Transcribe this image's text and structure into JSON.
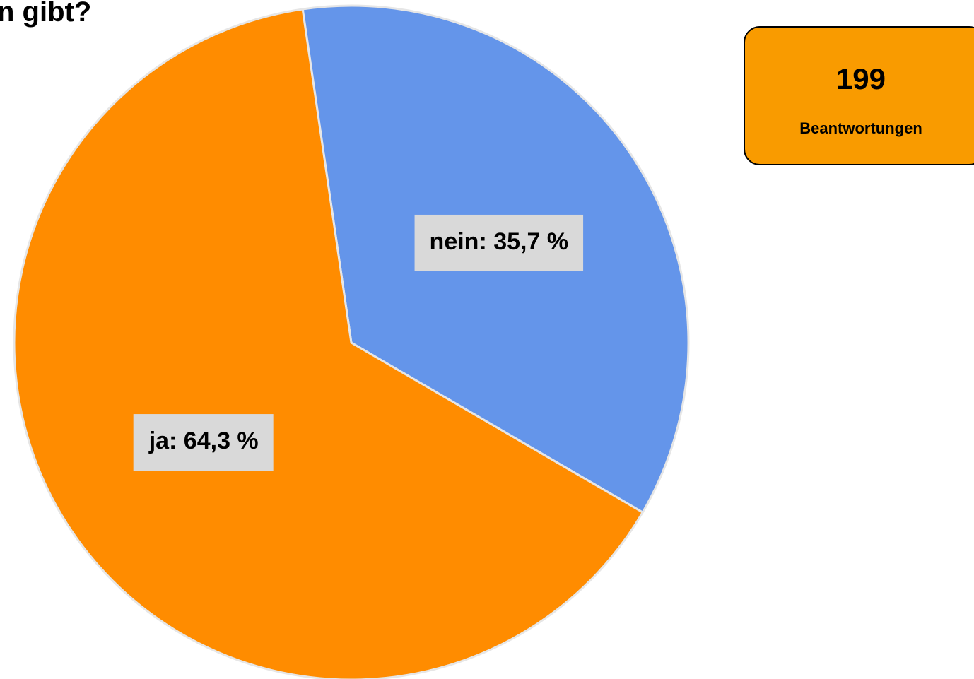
{
  "chart_data": {
    "type": "pie",
    "title": "n gibt?",
    "categories": [
      "nein",
      "ja"
    ],
    "values": [
      35.7,
      64.3
    ],
    "value_labels": [
      "nein: 35,7 %",
      "ja: 64,3 %"
    ],
    "colors": [
      "#6495ea",
      "#ff8c00"
    ]
  },
  "summary": {
    "count": 199,
    "label": "Beantwortungen"
  }
}
